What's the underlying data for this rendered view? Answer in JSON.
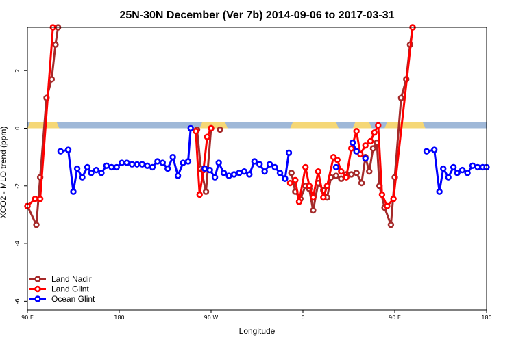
{
  "chart_data": {
    "type": "line",
    "title": "25N-30N December (Ver 7b)   2014-09-06 to 2017-03-31",
    "xlabel": "Longitude",
    "ylabel": "XCO2 - MLO trend (ppm)",
    "xlim": [
      0,
      360
    ],
    "ylim": [
      -6.3,
      3.5
    ],
    "xticks": [
      {
        "value": 0,
        "label": "90 E"
      },
      {
        "value": 72,
        "label": "180"
      },
      {
        "value": 144,
        "label": "90 W"
      },
      {
        "value": 216,
        "label": "0"
      },
      {
        "value": 288,
        "label": "90 E"
      },
      {
        "value": 360,
        "label": "180"
      }
    ],
    "yticks": [
      {
        "value": 2,
        "label": "2"
      },
      {
        "value": 0,
        "label": "0"
      },
      {
        "value": -2,
        "label": "-2"
      },
      {
        "value": -4,
        "label": "-4"
      },
      {
        "value": -6,
        "label": "-6"
      }
    ],
    "legend_position": "bottom-left",
    "land_ocean_band": {
      "y_range": [
        0,
        0.22
      ],
      "ocean_color": "#9fb8d8",
      "land_color": "#f5d776",
      "land_segments": [
        [
          0,
          25
        ],
        [
          135,
          157
        ],
        [
          206,
          244
        ],
        [
          255,
          270
        ],
        [
          280,
          312
        ]
      ]
    },
    "series": [
      {
        "name": "Land Nadir",
        "color": "#a52a2a",
        "segments": [
          [
            [
              0,
              -2.7
            ],
            [
              7,
              -3.35
            ],
            [
              10,
              -1.7
            ],
            [
              15,
              1.05
            ],
            [
              19,
              1.7
            ],
            [
              22,
              2.9
            ],
            [
              24,
              3.5
            ]
          ],
          [
            [
              133,
              -0.05
            ],
            [
              136,
              -1.4
            ],
            [
              140,
              -2.2
            ],
            [
              144,
              0.0
            ]
          ],
          [
            [
              151,
              -0.05
            ]
          ],
          [
            [
              207,
              -1.55
            ],
            [
              210,
              -2.2
            ],
            [
              214,
              -2.45
            ],
            [
              218,
              -2.0
            ],
            [
              221,
              -2.1
            ],
            [
              224,
              -2.85
            ],
            [
              228,
              -1.9
            ],
            [
              232,
              -2.15
            ],
            [
              235,
              -2.4
            ],
            [
              238,
              -1.7
            ],
            [
              242,
              -1.65
            ],
            [
              246,
              -1.75
            ],
            [
              250,
              -1.6
            ],
            [
              254,
              -1.6
            ],
            [
              258,
              -1.55
            ],
            [
              262,
              -1.9
            ],
            [
              265,
              -1.0
            ],
            [
              268,
              -1.5
            ],
            [
              271,
              -0.7
            ],
            [
              274,
              -0.5
            ],
            [
              276,
              -2.0
            ],
            [
              280,
              -2.75
            ],
            [
              285,
              -3.35
            ],
            [
              288,
              -1.7
            ],
            [
              293,
              1.05
            ],
            [
              297,
              1.7
            ],
            [
              300,
              2.9
            ],
            [
              302,
              3.5
            ]
          ]
        ]
      },
      {
        "name": "Land Glint",
        "color": "#ff0000",
        "segments": [
          [
            [
              0,
              -2.7
            ],
            [
              6,
              -2.45
            ],
            [
              10,
              -2.45
            ],
            [
              20,
              3.5
            ]
          ],
          [
            [
              132,
              -0.1
            ],
            [
              135,
              -2.3
            ],
            [
              138,
              -1.45
            ],
            [
              141,
              -0.3
            ],
            [
              144,
              0.0
            ]
          ],
          [
            [
              206,
              -1.9
            ],
            [
              210,
              -1.8
            ],
            [
              213,
              -2.55
            ],
            [
              218,
              -1.35
            ],
            [
              221,
              -2.0
            ],
            [
              224,
              -2.4
            ],
            [
              228,
              -1.5
            ],
            [
              232,
              -2.4
            ],
            [
              235,
              -2.0
            ],
            [
              240,
              -1.0
            ],
            [
              243,
              -1.1
            ],
            [
              246,
              -1.5
            ],
            [
              250,
              -1.7
            ],
            [
              254,
              -0.7
            ],
            [
              258,
              -0.1
            ],
            [
              261,
              -0.9
            ],
            [
              265,
              -0.6
            ],
            [
              269,
              -0.45
            ],
            [
              272,
              -0.15
            ],
            [
              275,
              0.1
            ],
            [
              278,
              -2.3
            ],
            [
              282,
              -2.7
            ],
            [
              287,
              -2.45
            ],
            [
              302,
              3.5
            ]
          ]
        ]
      },
      {
        "name": "Ocean Glint",
        "color": "#0000ff",
        "segments": [
          [
            [
              26,
              -0.8
            ],
            [
              32,
              -0.75
            ],
            [
              36,
              -2.2
            ],
            [
              39,
              -1.4
            ],
            [
              43,
              -1.7
            ],
            [
              47,
              -1.35
            ],
            [
              50,
              -1.55
            ],
            [
              54,
              -1.45
            ],
            [
              58,
              -1.55
            ],
            [
              62,
              -1.3
            ],
            [
              66,
              -1.35
            ],
            [
              70,
              -1.35
            ],
            [
              74,
              -1.2
            ],
            [
              78,
              -1.2
            ],
            [
              82,
              -1.25
            ],
            [
              86,
              -1.25
            ],
            [
              90,
              -1.25
            ],
            [
              94,
              -1.3
            ],
            [
              98,
              -1.35
            ],
            [
              102,
              -1.15
            ],
            [
              106,
              -1.2
            ],
            [
              110,
              -1.4
            ],
            [
              114,
              -1.0
            ],
            [
              118,
              -1.65
            ],
            [
              122,
              -1.2
            ],
            [
              126,
              -1.15
            ],
            [
              128,
              0.0
            ]
          ],
          [
            [
              139,
              -1.4
            ],
            [
              143,
              -1.45
            ],
            [
              147,
              -1.7
            ],
            [
              150,
              -1.2
            ],
            [
              154,
              -1.55
            ],
            [
              158,
              -1.65
            ],
            [
              162,
              -1.6
            ],
            [
              166,
              -1.55
            ],
            [
              170,
              -1.5
            ],
            [
              174,
              -1.6
            ],
            [
              178,
              -1.15
            ],
            [
              182,
              -1.25
            ],
            [
              186,
              -1.5
            ],
            [
              190,
              -1.25
            ],
            [
              194,
              -1.35
            ],
            [
              198,
              -1.55
            ],
            [
              202,
              -1.75
            ],
            [
              205,
              -0.85
            ]
          ],
          [
            [
              242,
              -1.35
            ]
          ],
          [
            [
              255,
              -0.5
            ],
            [
              258,
              -0.8
            ]
          ],
          [
            [
              265,
              -1.05
            ]
          ],
          [
            [
              313,
              -0.8
            ],
            [
              319,
              -0.75
            ],
            [
              323,
              -2.2
            ],
            [
              326,
              -1.4
            ],
            [
              330,
              -1.7
            ],
            [
              334,
              -1.35
            ],
            [
              337,
              -1.55
            ],
            [
              341,
              -1.45
            ],
            [
              345,
              -1.55
            ],
            [
              349,
              -1.3
            ],
            [
              353,
              -1.35
            ],
            [
              357,
              -1.35
            ],
            [
              360,
              -1.35
            ]
          ]
        ]
      }
    ]
  }
}
